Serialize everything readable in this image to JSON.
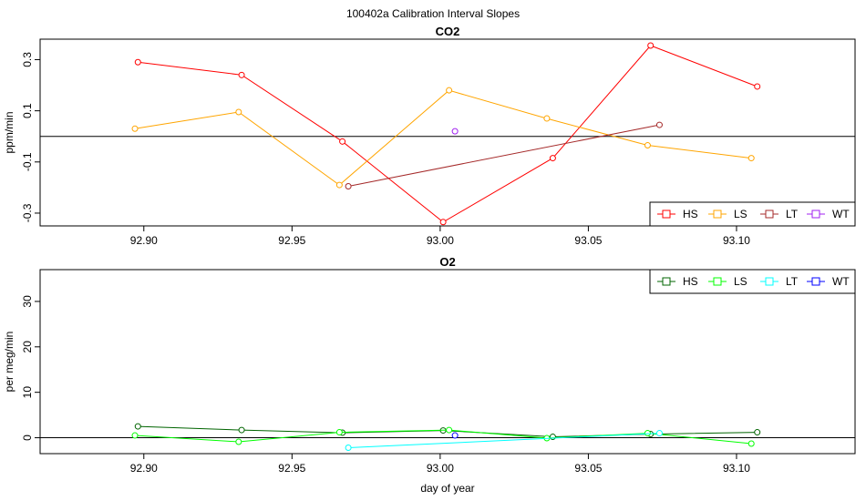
{
  "page": {
    "title": "100402a   Calibration Interval Slopes"
  },
  "chart_data": [
    {
      "type": "line",
      "title": "CO2",
      "xlabel": "",
      "ylabel": "ppm/min",
      "xlim": [
        92.865,
        93.14
      ],
      "ylim": [
        -0.35,
        0.38
      ],
      "xticks": [
        92.9,
        92.95,
        93.0,
        93.05,
        93.1
      ],
      "xtick_labels": [
        "92.90",
        "92.95",
        "93.00",
        "93.05",
        "93.10"
      ],
      "yticks": [
        -0.3,
        -0.1,
        0.1,
        0.3
      ],
      "ytick_labels": [
        "-0.3",
        "-0.1",
        "0.1",
        "0.3"
      ],
      "hline": 0,
      "legend_position": "bottom-right",
      "series": [
        {
          "name": "HS",
          "color": "#ff0000",
          "x": [
            92.898,
            92.933,
            92.967,
            93.001,
            93.038,
            93.071,
            93.107
          ],
          "y": [
            0.29,
            0.24,
            -0.02,
            -0.335,
            -0.085,
            0.355,
            0.195
          ]
        },
        {
          "name": "LS",
          "color": "#ffa500",
          "x": [
            92.897,
            92.932,
            92.966,
            93.003,
            93.036,
            93.07,
            93.105
          ],
          "y": [
            0.03,
            0.095,
            -0.19,
            0.18,
            0.07,
            -0.035,
            -0.085
          ]
        },
        {
          "name": "LT",
          "color": "#a52a2a",
          "x": [
            92.969,
            93.074
          ],
          "y": [
            -0.195,
            0.045
          ]
        },
        {
          "name": "WT",
          "color": "#a020f0",
          "x": [
            93.005
          ],
          "y": [
            0.02
          ]
        }
      ]
    },
    {
      "type": "line",
      "title": "O2",
      "xlabel": "day of year",
      "ylabel": "per meg/min",
      "xlim": [
        92.865,
        93.14
      ],
      "ylim": [
        -3.5,
        37
      ],
      "xticks": [
        92.9,
        92.95,
        93.0,
        93.05,
        93.1
      ],
      "xtick_labels": [
        "92.90",
        "92.95",
        "93.00",
        "93.05",
        "93.10"
      ],
      "yticks": [
        0,
        10,
        20,
        30
      ],
      "ytick_labels": [
        "0",
        "10",
        "20",
        "30"
      ],
      "hline": 0,
      "legend_position": "top-right",
      "series": [
        {
          "name": "HS",
          "color": "#006400",
          "x": [
            92.898,
            92.933,
            92.967,
            93.001,
            93.038,
            93.071,
            93.107
          ],
          "y": [
            2.5,
            1.7,
            1.1,
            1.6,
            0.2,
            0.8,
            1.2
          ]
        },
        {
          "name": "LS",
          "color": "#00ff00",
          "x": [
            92.897,
            92.932,
            92.966,
            93.003,
            93.036,
            93.07,
            93.105
          ],
          "y": [
            0.5,
            -0.9,
            1.2,
            1.7,
            -0.1,
            1.0,
            -1.3
          ]
        },
        {
          "name": "LT",
          "color": "#00ffff",
          "x": [
            92.969,
            93.074
          ],
          "y": [
            -2.2,
            1.0
          ]
        },
        {
          "name": "WT",
          "color": "#0000ff",
          "x": [
            93.005
          ],
          "y": [
            0.5
          ]
        }
      ]
    }
  ]
}
